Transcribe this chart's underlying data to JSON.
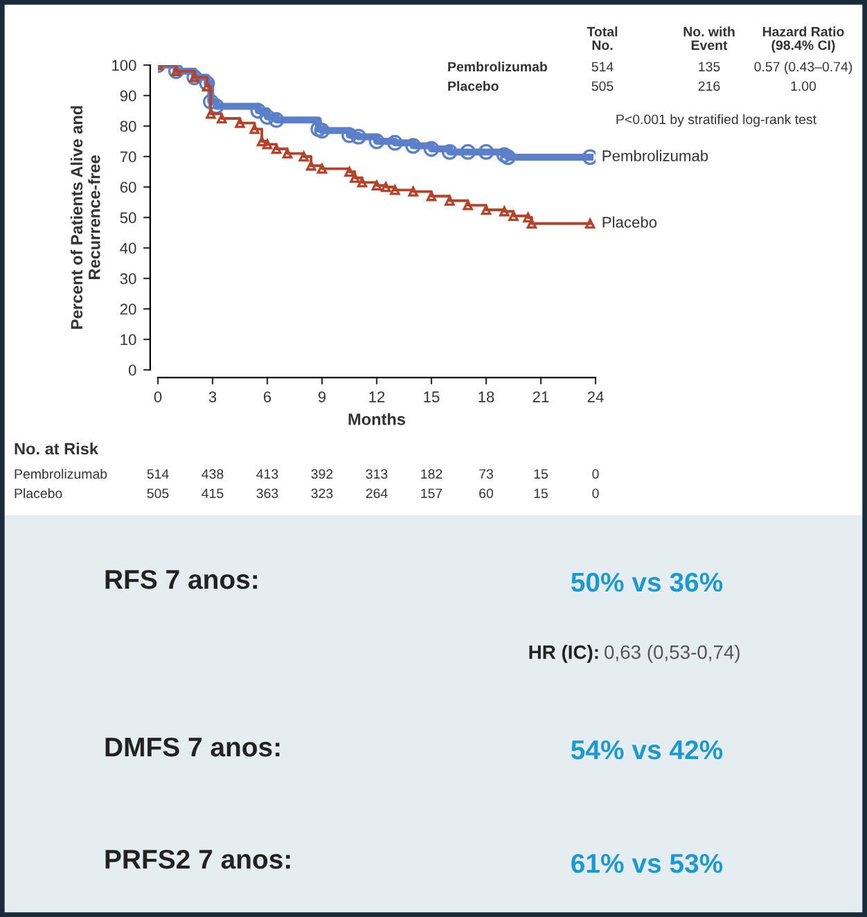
{
  "chart_data": {
    "type": "step",
    "xlabel": "Months",
    "ylabel": "Percent of Patients Alive and\nRecurrence-free",
    "x": [
      0,
      1,
      2,
      2.7,
      2.9,
      3.2,
      5.5,
      6,
      6.5,
      8.8,
      9,
      10.5,
      11,
      12,
      13,
      14,
      15,
      16,
      17,
      18,
      19,
      19.2,
      23.7
    ],
    "series": [
      {
        "name": "Pembrolizumab",
        "color": "#5b7fc8",
        "marker": "circle",
        "values": [
          100,
          98,
          96,
          94,
          88,
          86.5,
          85,
          83,
          82,
          79,
          78.5,
          77,
          76.5,
          75,
          74.5,
          73.5,
          72.5,
          71.5,
          71.5,
          71.5,
          70.5,
          69.8,
          69.8
        ]
      },
      {
        "name": "Placebo",
        "color": "#b5432a",
        "marker": "triangle",
        "x": [
          0,
          1,
          2,
          2.7,
          2.9,
          3.5,
          4.5,
          5.3,
          5.7,
          6,
          6.5,
          7.1,
          8,
          8.4,
          9,
          10.5,
          10.8,
          11.2,
          12,
          12.5,
          13,
          14,
          15,
          16,
          17,
          18,
          19,
          19.5,
          20.3,
          20.5,
          23.7
        ],
        "values": [
          100,
          98,
          96,
          93,
          84,
          82.5,
          81,
          79,
          75,
          74,
          72.5,
          71,
          70,
          67,
          66,
          65,
          63,
          61.5,
          60.5,
          60,
          59,
          58.5,
          57,
          55.5,
          54,
          52.5,
          52,
          50.5,
          50,
          48,
          48
        ]
      }
    ],
    "xlim": [
      0,
      24
    ],
    "ylim": [
      0,
      100
    ],
    "xticks": [
      0,
      3,
      6,
      9,
      12,
      15,
      18,
      21,
      24
    ],
    "yticks": [
      0,
      10,
      20,
      30,
      40,
      50,
      60,
      70,
      80,
      90,
      100
    ],
    "grid": false,
    "legend": false,
    "annotations": [
      "Total\nNo.",
      "No. with\nEvent",
      "Hazard Ratio\n(98.4% CI)",
      "Pembrolizumab",
      "514",
      "135",
      "0.57 (0.43–0.74)",
      "Placebo",
      "505",
      "216",
      "1.00",
      "P<0.001 by stratified log-rank test",
      "No. at Risk",
      "Pembrolizumab",
      "514",
      "438",
      "413",
      "392",
      "313",
      "182",
      "73",
      "15",
      "0",
      "Placebo",
      "505",
      "415",
      "363",
      "323",
      "264",
      "157",
      "60",
      "15",
      "0",
      "RFS 7 anos:",
      "50% vs 36%",
      "HR (IC):",
      "0,63 (0,53-0,74)",
      "DMFS 7 anos:",
      "54% vs 42%",
      "PRFS2 7 anos:",
      "61% vs 53%"
    ]
  }
}
